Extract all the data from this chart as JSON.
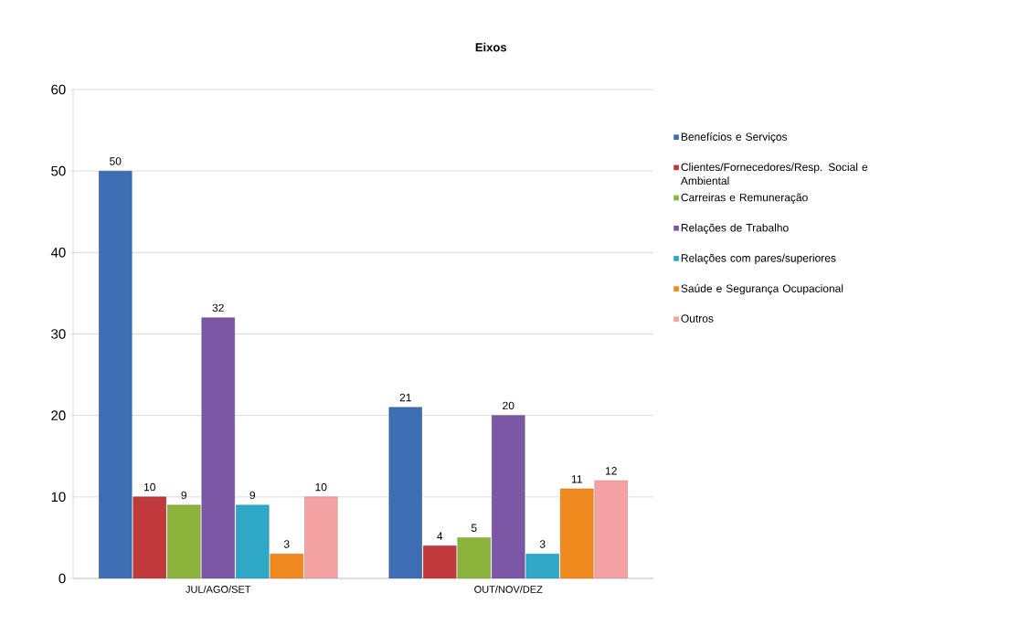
{
  "chart_data": {
    "type": "bar",
    "title": "Eixos",
    "categories": [
      "JUL/AGO/SET",
      "OUT/NOV/DEZ"
    ],
    "series": [
      {
        "name": "Benefícios e Serviços",
        "color": "#3d6eb4",
        "values": [
          50,
          21
        ]
      },
      {
        "name": "Clientes/Fornecedores/Resp. Social e Ambiental",
        "color": "#c0393b",
        "values": [
          10,
          4
        ]
      },
      {
        "name": "Carreiras e Remuneração",
        "color": "#8cb43c",
        "values": [
          9,
          5
        ]
      },
      {
        "name": "Relações de Trabalho",
        "color": "#7b57a6",
        "values": [
          32,
          20
        ]
      },
      {
        "name": "Relações com pares/superiores",
        "color": "#2fa8c8",
        "values": [
          9,
          3
        ]
      },
      {
        "name": "Saúde e Segurança Ocupacional",
        "color": "#f08a1e",
        "values": [
          3,
          11
        ]
      },
      {
        "name": "Outros",
        "color": "#f4a2a2",
        "values": [
          10,
          12
        ]
      }
    ],
    "ylim": [
      0,
      60
    ],
    "yticks": [
      0,
      10,
      20,
      30,
      40,
      50,
      60
    ],
    "grid": "y",
    "legend": "right",
    "data_labels": true
  }
}
